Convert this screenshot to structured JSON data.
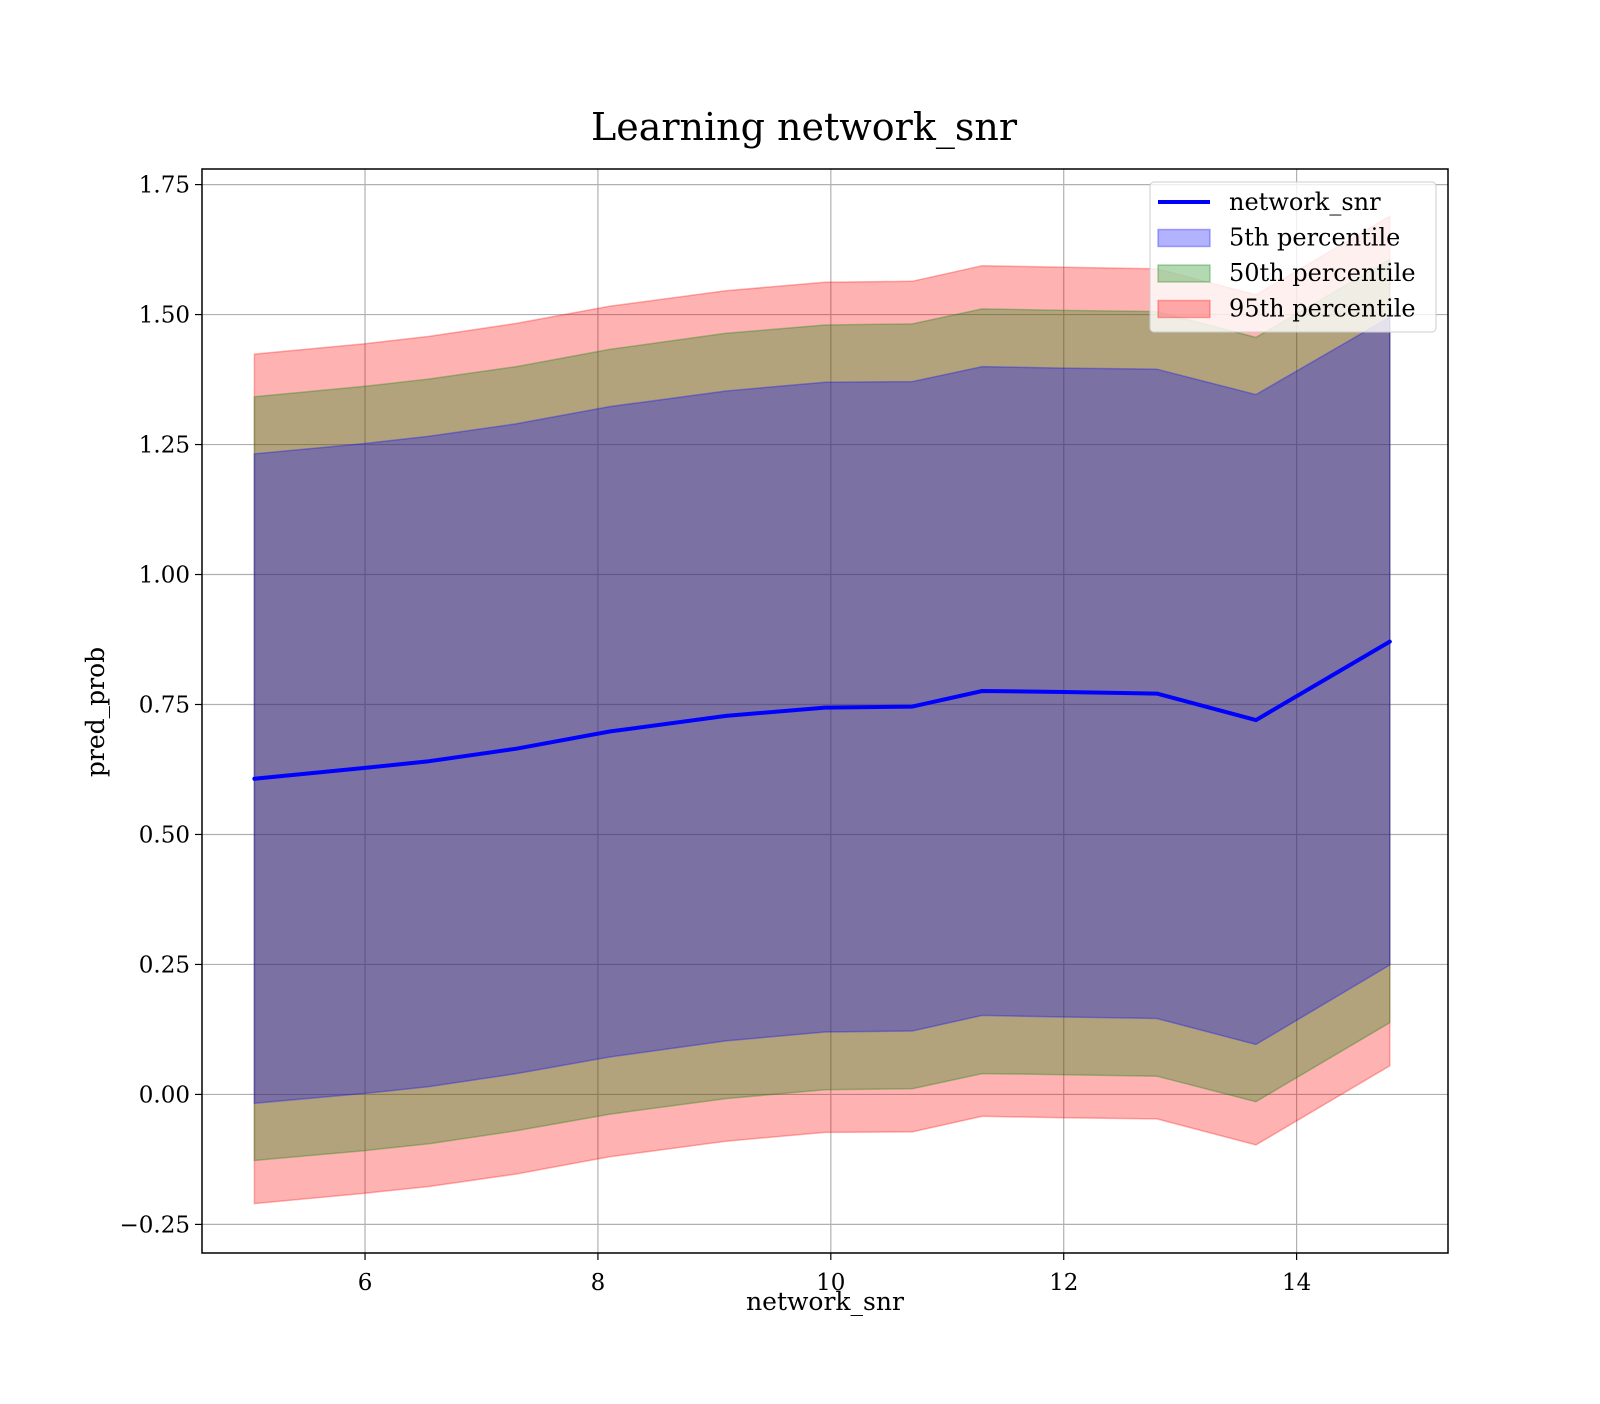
{
  "chart_data": {
    "type": "area",
    "title": "Learning network_snr",
    "xlabel": "network_snr",
    "ylabel": "pred_prob",
    "xlim": [
      4.6,
      15.3
    ],
    "ylim": [
      -0.305,
      1.78
    ],
    "xticks": [
      6,
      8,
      10,
      12,
      14
    ],
    "xtick_labels": [
      "6",
      "8",
      "10",
      "12",
      "14"
    ],
    "yticks": [
      -0.25,
      0.0,
      0.25,
      0.5,
      0.75,
      1.0,
      1.25,
      1.5,
      1.75
    ],
    "ytick_labels": [
      "−0.25",
      "0.00",
      "0.25",
      "0.50",
      "0.75",
      "1.00",
      "1.25",
      "1.50",
      "1.75"
    ],
    "grid": true,
    "legend_position": "top-right",
    "x": [
      5.05,
      6.0,
      6.55,
      7.3,
      8.1,
      9.1,
      9.95,
      10.7,
      11.3,
      12.0,
      12.8,
      13.65,
      14.8
    ],
    "line": {
      "name": "network_snr",
      "color": "#0000ff",
      "values": [
        0.607,
        0.628,
        0.641,
        0.665,
        0.698,
        0.728,
        0.744,
        0.746,
        0.776,
        0.774,
        0.771,
        0.72,
        0.871
      ]
    },
    "bands": [
      {
        "name": "5th percentile",
        "color": "#0000ff",
        "lower": [
          -0.017,
          0.002,
          0.015,
          0.04,
          0.072,
          0.103,
          0.12,
          0.122,
          0.152,
          0.149,
          0.146,
          0.096,
          0.249
        ],
        "upper": [
          1.232,
          1.252,
          1.266,
          1.29,
          1.323,
          1.353,
          1.37,
          1.371,
          1.4,
          1.397,
          1.395,
          1.346,
          1.495
        ]
      },
      {
        "name": "50th percentile",
        "color": "#008000",
        "lower": [
          -0.127,
          -0.108,
          -0.095,
          -0.07,
          -0.038,
          -0.008,
          0.009,
          0.011,
          0.04,
          0.038,
          0.035,
          -0.014,
          0.138
        ],
        "upper": [
          1.342,
          1.362,
          1.376,
          1.4,
          1.433,
          1.464,
          1.48,
          1.482,
          1.511,
          1.508,
          1.506,
          1.456,
          1.606
        ]
      },
      {
        "name": "95th percentile",
        "color": "#ff0000",
        "lower": [
          -0.21,
          -0.19,
          -0.177,
          -0.153,
          -0.12,
          -0.09,
          -0.073,
          -0.072,
          -0.042,
          -0.045,
          -0.047,
          -0.097,
          0.055
        ],
        "upper": [
          1.424,
          1.444,
          1.458,
          1.483,
          1.516,
          1.546,
          1.562,
          1.564,
          1.594,
          1.591,
          1.588,
          1.538,
          1.689
        ]
      }
    ]
  }
}
